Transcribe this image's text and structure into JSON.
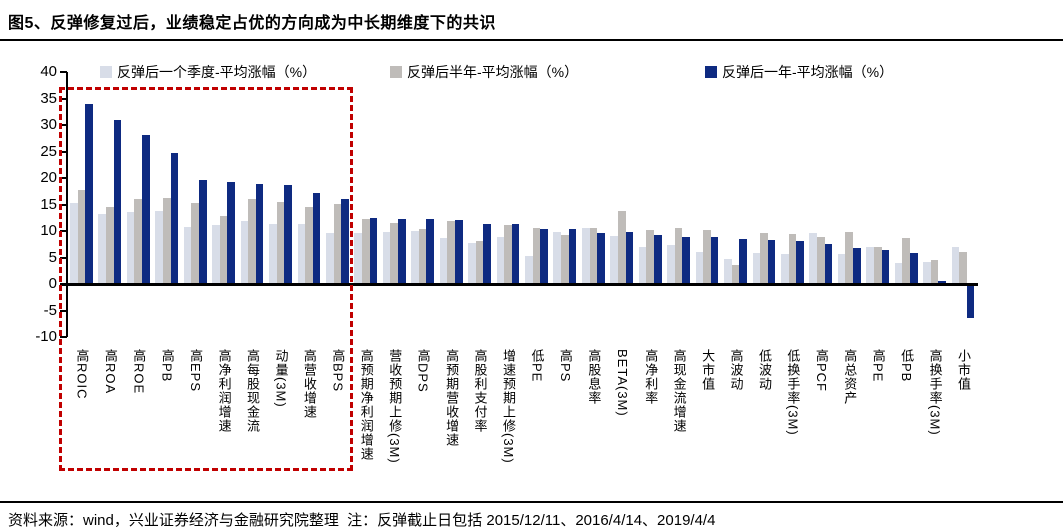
{
  "title": "图5、反弹修复过后，业绩稳定占优的方向成为中长期维度下的共识",
  "source_note": "资料来源：wind，兴业证券经济与金融研究院整理  注：反弹截止日包括 2015/12/11、2016/4/14、2019/4/4",
  "colors": {
    "series_quarter": "#d8dde8",
    "series_half_year": "#bfbcb9",
    "series_year": "#0e2a81",
    "highlight_box": "#c00000",
    "axis": "#000000"
  },
  "chart_data": {
    "type": "bar",
    "title": "图5、反弹修复过后，业绩稳定占优的方向成为中长期维度下的共识",
    "xlabel": "",
    "ylabel": "",
    "ylim": [
      -10,
      40
    ],
    "yticks": [
      40,
      35,
      30,
      25,
      20,
      15,
      10,
      5,
      0,
      -5,
      -10
    ],
    "grid": false,
    "legend_position": "top",
    "highlight_box_category_range": [
      0,
      9
    ],
    "categories": [
      "高ROIC",
      "高ROA",
      "高ROE",
      "高PB",
      "高EPS",
      "高净利润增速",
      "高每股现金流",
      "动量(3M)",
      "高营收增速",
      "高BPS",
      "高预期净利润增速",
      "营收预期上修(3M)",
      "高DPS",
      "高预期营收增速",
      "高股利支付率",
      "增速预期上修(3M)",
      "低PE",
      "高PS",
      "高股息率",
      "BETA(3M)",
      "高净利率",
      "高现金流增速",
      "大市值",
      "高波动",
      "低波动",
      "低换手率(3M)",
      "高PCF",
      "高总资产",
      "高PE",
      "低PB",
      "高换手率(3M)",
      "小市值"
    ],
    "series": [
      {
        "name": "反弹后一个季度-平均涨幅（%）",
        "color_key": "series_quarter",
        "values": [
          15.2,
          13.3,
          13.5,
          13.8,
          10.8,
          11.1,
          11.8,
          11.4,
          11.3,
          9.7,
          9.6,
          9.9,
          10.0,
          8.7,
          7.7,
          8.8,
          5.2,
          9.9,
          10.5,
          9.1,
          6.9,
          7.4,
          6.1,
          4.7,
          5.9,
          5.7,
          9.7,
          5.6,
          6.9,
          4.0,
          4.2,
          6.9
        ]
      },
      {
        "name": "反弹后半年-平均涨幅（%）",
        "color_key": "series_half_year",
        "values": [
          17.7,
          14.6,
          16.0,
          16.3,
          15.2,
          12.8,
          16.0,
          15.5,
          14.5,
          15.1,
          12.3,
          11.5,
          10.3,
          11.9,
          8.2,
          11.2,
          10.5,
          9.3,
          10.5,
          13.8,
          10.2,
          10.5,
          10.1,
          3.5,
          9.7,
          9.5,
          8.8,
          9.9,
          7.0,
          8.6,
          4.6,
          6.0
        ]
      },
      {
        "name": "反弹后一年-平均涨幅（%）",
        "color_key": "series_year",
        "values": [
          34.0,
          31.0,
          28.2,
          24.7,
          19.6,
          19.2,
          18.9,
          18.6,
          17.2,
          16.0,
          12.4,
          12.2,
          12.2,
          12.0,
          11.3,
          11.3,
          10.4,
          10.4,
          9.7,
          9.9,
          9.3,
          8.8,
          8.8,
          8.4,
          8.3,
          8.2,
          7.6,
          6.8,
          6.5,
          5.8,
          0.6,
          -6.5
        ]
      }
    ]
  }
}
